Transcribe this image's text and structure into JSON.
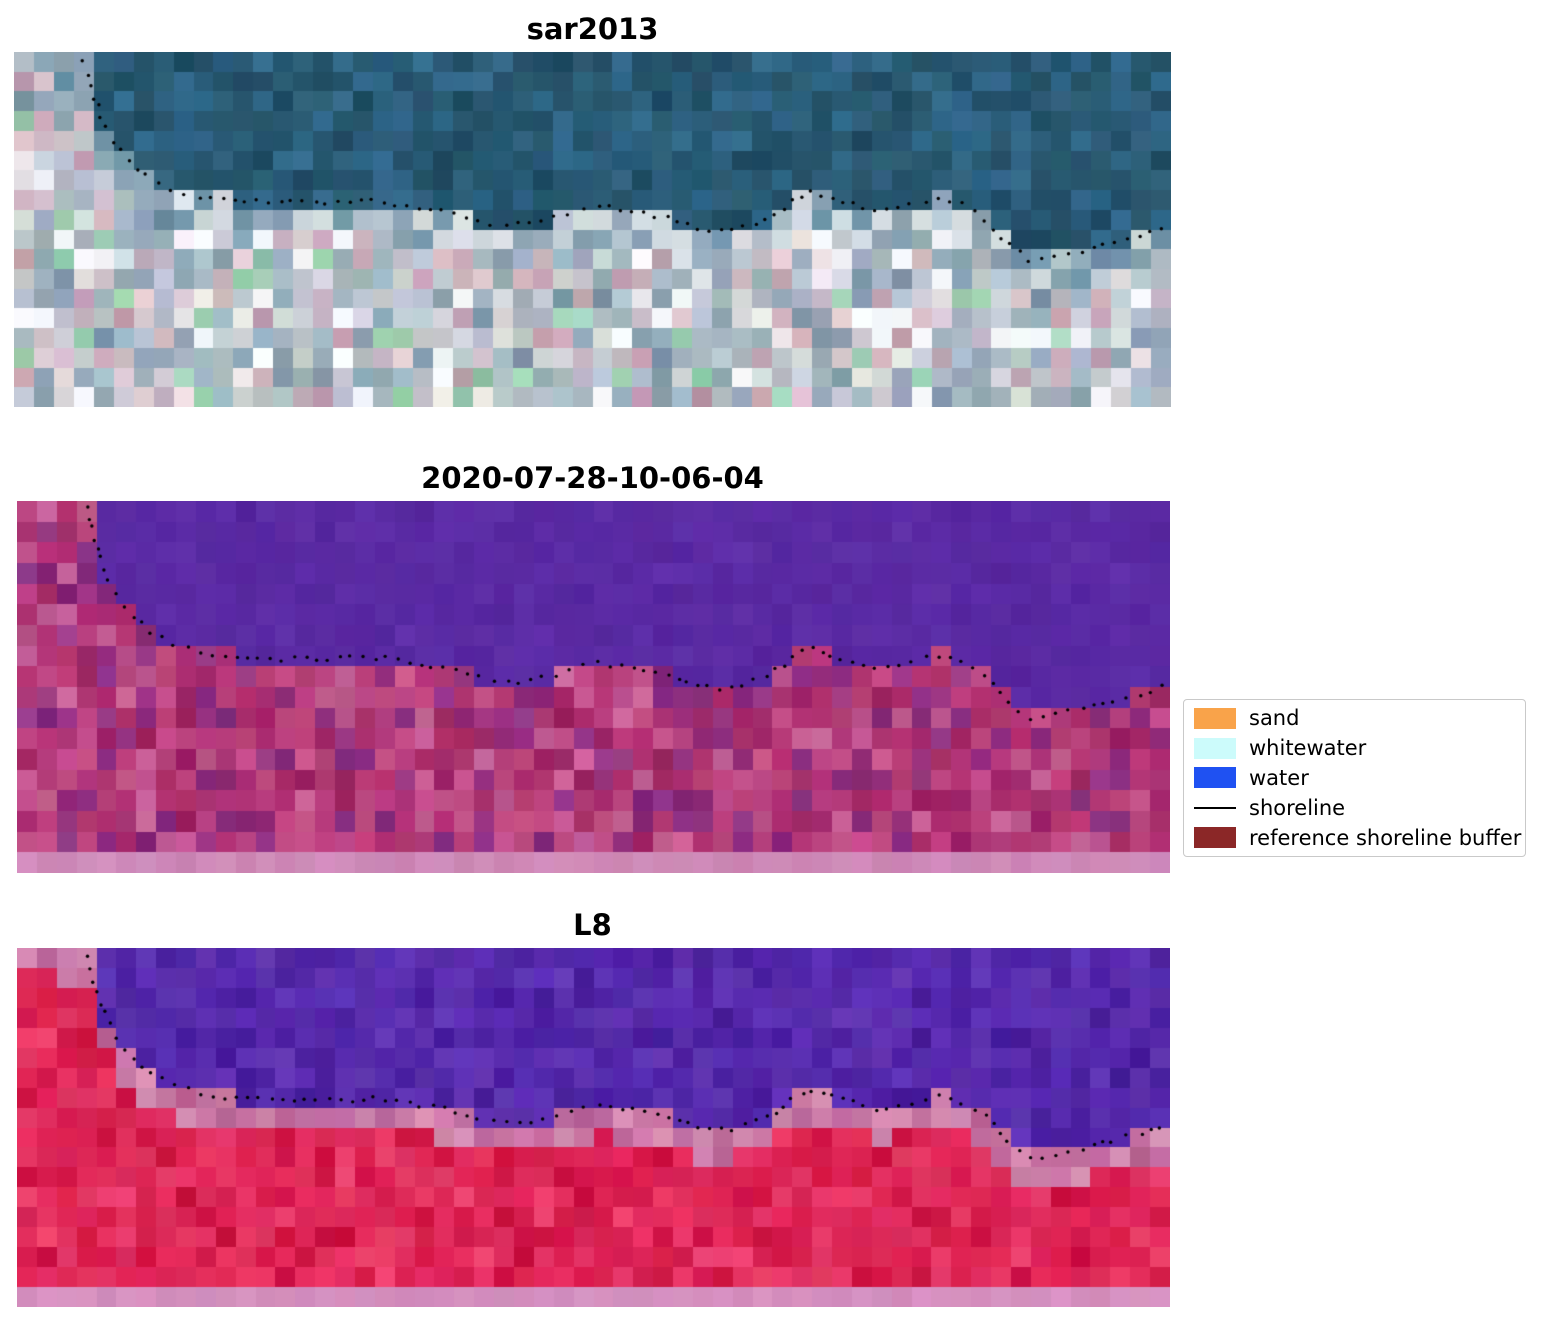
{
  "chart_data": {
    "type": "heatmap",
    "kind": "satellite-shoreline-detection-figure",
    "description": "Three stacked satellite image panels sharing one detected shoreline (black dotted markers). Water occupies the upper region of each panel, land the lower region.",
    "panels": [
      {
        "title": "sar2013",
        "content": "RGB satellite mosaic: dark teal-blue water above the shoreline, bright pixelated urban/sand land below",
        "seed": 7,
        "cols": 58,
        "rows": 18,
        "water": [
          "#27566d",
          "#2d5f7c",
          "#224e66",
          "#31688a",
          "#285a72"
        ],
        "water_jitter": 7,
        "land": [
          "#c2c5cd",
          "#d6c0ca",
          "#b4bfca",
          "#9cafbd",
          "#e4e0e3",
          "#c5a5b6",
          "#8aa0b0",
          "#ccd2d8",
          "#a6b8c3",
          "#9ed2b3"
        ],
        "land_jitter": 16,
        "bright": "#f6f8fb",
        "bright_chance": 0.08,
        "shore_band": [
          "#b7c5d0",
          "#8fa7b6",
          "#d5dce1",
          "#6f93a8"
        ],
        "shore_band_depth": 0.1
      },
      {
        "title": "2020-07-28-10-06-04",
        "content": "Classified scene: flat purple water above the shoreline, magenta/pink land below, light pink strip along the bottom edge",
        "seed": 21,
        "cols": 58,
        "rows": 18,
        "water": [
          "#5a2aa4",
          "#5c2ca6",
          "#5828a0"
        ],
        "water_jitter": 5,
        "land": [
          "#ad2f70",
          "#b63777",
          "#a32a69",
          "#c04a84",
          "#94317e",
          "#bb4580",
          "#8a2f80",
          "#c35d93"
        ],
        "land_jitter": 13,
        "bottom_strip": "#ce89b8"
      },
      {
        "title": "L8",
        "content": "Landsat 8 false-colour scene: purple water above the shoreline, pink transition band, bright crimson-red land below, light pink strip along the bottom edge",
        "seed": 33,
        "cols": 58,
        "rows": 18,
        "water": [
          "#5226a9",
          "#5a2db3",
          "#4b209f",
          "#5e32b0"
        ],
        "water_jitter": 8,
        "land": [
          "#dc2052",
          "#e02a5b",
          "#d51a4a",
          "#e73a67",
          "#cf1545",
          "#e22e5f"
        ],
        "land_jitter": 11,
        "shore_band": [
          "#c876a6",
          "#d28ab1",
          "#bd6699"
        ],
        "shore_band_depth": 0.085,
        "bottom_strip": "#d590bf"
      }
    ],
    "legend": {
      "items": [
        {
          "label": "sand",
          "type": "patch",
          "color": "#f9a34a"
        },
        {
          "label": "whitewater",
          "type": "patch",
          "color": "#ccfbfb"
        },
        {
          "label": "water",
          "type": "patch",
          "color": "#1f51f2"
        },
        {
          "label": "shoreline",
          "type": "line",
          "color": "#000000"
        },
        {
          "label": "reference shoreline buffer",
          "type": "patch",
          "color": "#8b2727"
        }
      ]
    },
    "shoreline_normalized": [
      [
        0.0,
        -0.05
      ],
      [
        0.06,
        0.02
      ],
      [
        0.066,
        0.1
      ],
      [
        0.075,
        0.18
      ],
      [
        0.085,
        0.25
      ],
      [
        0.1,
        0.31
      ],
      [
        0.115,
        0.35
      ],
      [
        0.135,
        0.385
      ],
      [
        0.16,
        0.405
      ],
      [
        0.19,
        0.42
      ],
      [
        0.23,
        0.425
      ],
      [
        0.27,
        0.425
      ],
      [
        0.31,
        0.42
      ],
      [
        0.34,
        0.43
      ],
      [
        0.37,
        0.45
      ],
      [
        0.4,
        0.475
      ],
      [
        0.425,
        0.49
      ],
      [
        0.455,
        0.475
      ],
      [
        0.48,
        0.455
      ],
      [
        0.505,
        0.435
      ],
      [
        0.535,
        0.45
      ],
      [
        0.565,
        0.47
      ],
      [
        0.59,
        0.5
      ],
      [
        0.62,
        0.505
      ],
      [
        0.65,
        0.475
      ],
      [
        0.672,
        0.42
      ],
      [
        0.69,
        0.395
      ],
      [
        0.715,
        0.42
      ],
      [
        0.745,
        0.45
      ],
      [
        0.775,
        0.43
      ],
      [
        0.8,
        0.415
      ],
      [
        0.82,
        0.43
      ],
      [
        0.84,
        0.47
      ],
      [
        0.86,
        0.545
      ],
      [
        0.878,
        0.585
      ],
      [
        0.9,
        0.575
      ],
      [
        0.925,
        0.56
      ],
      [
        0.95,
        0.535
      ],
      [
        0.975,
        0.52
      ],
      [
        1.0,
        0.49
      ]
    ],
    "dot_marker": {
      "color": "#000000",
      "radius_px": 1.7,
      "spacing_px": 12
    }
  },
  "colors": {
    "background": "#ffffff",
    "title_text": "#000000",
    "legend_border": "#c9c9c9"
  }
}
